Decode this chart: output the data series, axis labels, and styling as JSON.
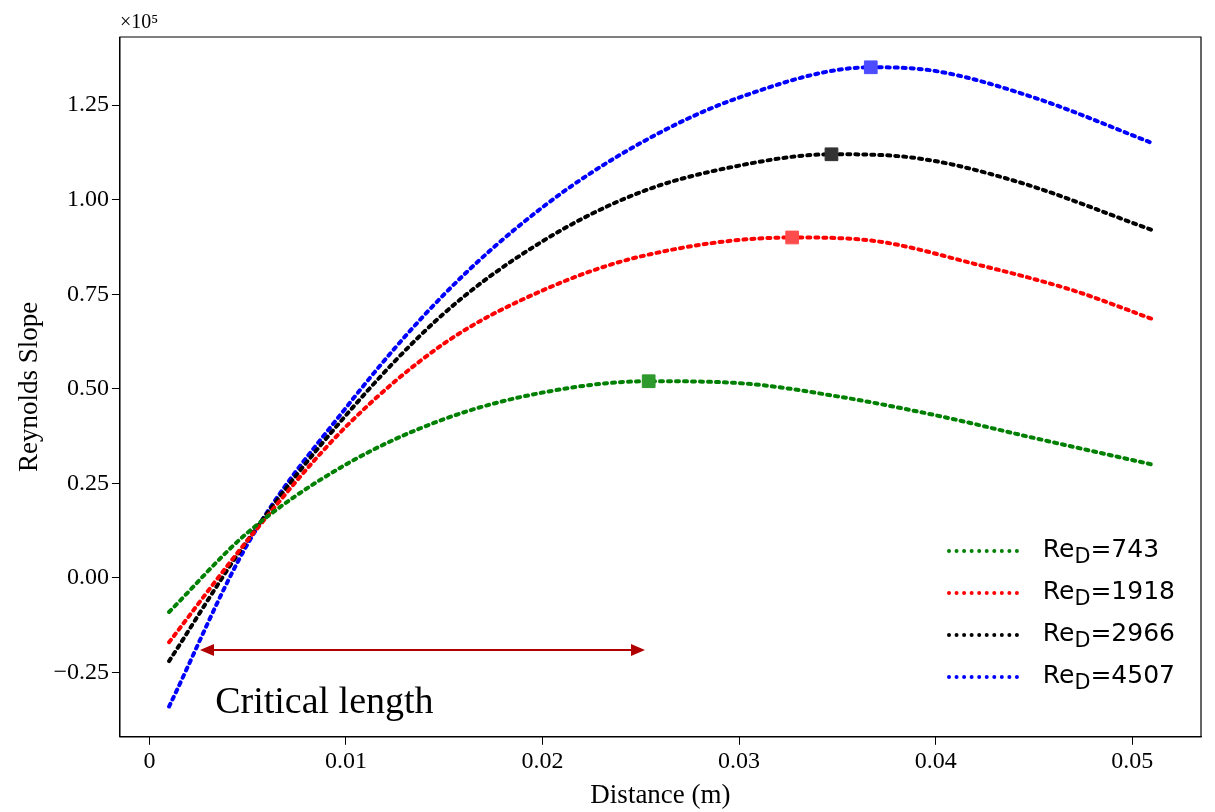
{
  "chart_data": {
    "type": "line",
    "xlabel": "Distance (m)",
    "ylabel": "Reynolds Slope",
    "xlim": [
      -0.0015,
      0.0535
    ],
    "xticks": [
      0,
      0.01,
      0.02,
      0.03,
      0.04,
      0.05
    ],
    "ylim": [
      -0.42,
      1.43
    ],
    "yticks": [
      {
        "value": -0.25,
        "label": "−0.25"
      },
      {
        "value": 0,
        "label": "0.00"
      },
      {
        "value": 0.25,
        "label": "0.25"
      },
      {
        "value": 0.5,
        "label": "0.50"
      },
      {
        "value": 0.75,
        "label": "0.75"
      },
      {
        "value": 1,
        "label": "1.00"
      },
      {
        "value": 1.25,
        "label": "1.25"
      }
    ],
    "grid": false,
    "legend": "bottom right",
    "line_style": "dotted",
    "marker": "none",
    "annotations": [
      "×10⁵",
      {
        "text": "Critical length",
        "x": 0.0008,
        "y": -0.33
      }
    ],
    "series": [
      {
        "name": "Re$_{D}$=743",
        "color": "#008000",
        "x": [
          0.001,
          0.005,
          0.01,
          0.015,
          0.02,
          0.0254,
          0.03,
          0.035,
          0.04,
          0.045,
          0.051
        ],
        "values": [
          -0.09,
          0.12,
          0.3,
          0.42,
          0.49,
          0.52,
          0.515,
          0.48,
          0.43,
          0.37,
          0.3
        ]
      },
      {
        "name": "Re$_{D}$=1918",
        "color": "#ff0000",
        "x": [
          0.001,
          0.005,
          0.01,
          0.015,
          0.02,
          0.025,
          0.0327,
          0.037,
          0.042,
          0.047,
          0.051
        ],
        "values": [
          -0.17,
          0.1,
          0.4,
          0.62,
          0.76,
          0.85,
          0.9,
          0.89,
          0.83,
          0.76,
          0.685
        ]
      },
      {
        "name": "Re$_{D}$=2966",
        "color": "#000000",
        "x": [
          0.001,
          0.005,
          0.01,
          0.015,
          0.02,
          0.025,
          0.03,
          0.0347,
          0.039,
          0.044,
          0.051
        ],
        "values": [
          -0.22,
          0.1,
          0.43,
          0.7,
          0.89,
          1.02,
          1.09,
          1.12,
          1.11,
          1.05,
          0.92
        ]
      },
      {
        "name": "Re$_{D}$=4507",
        "color": "#0000ff",
        "x": [
          0.001,
          0.005,
          0.01,
          0.015,
          0.02,
          0.025,
          0.03,
          0.0367,
          0.04,
          0.045,
          0.051
        ],
        "values": [
          -0.34,
          0.09,
          0.45,
          0.75,
          0.98,
          1.15,
          1.27,
          1.35,
          1.34,
          1.27,
          1.15
        ]
      },
      {
        "type": "scatter",
        "marker": "square",
        "x": [
          0.0254,
          0.0327,
          0.0347,
          0.0367
        ],
        "values": [
          0.52,
          0.9,
          1.12,
          1.35
        ],
        "colors": [
          "#2e9a2e",
          "#ff4d4d",
          "#333333",
          "#4d4dff"
        ]
      }
    ]
  }
}
